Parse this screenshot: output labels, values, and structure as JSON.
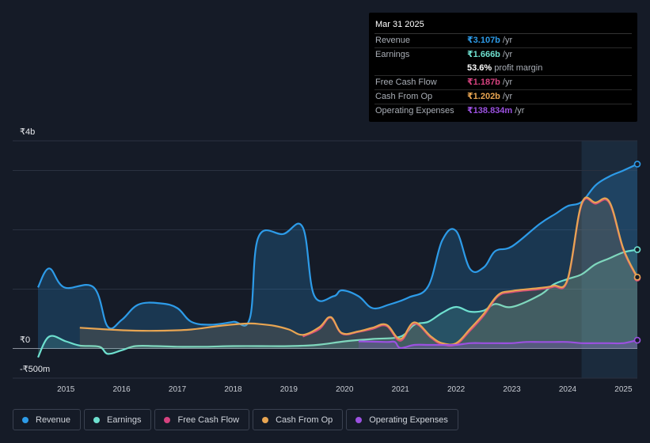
{
  "tooltip": {
    "date": "Mar 31 2025",
    "rows": [
      {
        "label": "Revenue",
        "value": "₹3.107b",
        "unit": "/yr",
        "color": "#2d9be8"
      },
      {
        "label": "Earnings",
        "value": "₹1.666b",
        "unit": "/yr",
        "color": "#6ee0cf"
      },
      {
        "label": "",
        "value": "53.6%",
        "unit": "profit margin",
        "color": "#ffffff"
      },
      {
        "label": "Free Cash Flow",
        "value": "₹1.187b",
        "unit": "/yr",
        "color": "#d6427f"
      },
      {
        "label": "Cash From Op",
        "value": "₹1.202b",
        "unit": "/yr",
        "color": "#e8a552"
      },
      {
        "label": "Operating Expenses",
        "value": "₹138.834m",
        "unit": "/yr",
        "color": "#9b51e0"
      }
    ]
  },
  "chart_data": {
    "type": "area",
    "title": "",
    "xlabel": "",
    "ylabel": "",
    "y_tick_labels": [
      "₹4b",
      "₹0",
      "-₹500m"
    ],
    "ylim": [
      -500,
      3500
    ],
    "xlim": [
      2014.5,
      2025.25
    ],
    "x_tick_labels": [
      "2015",
      "2016",
      "2017",
      "2018",
      "2019",
      "2020",
      "2021",
      "2022",
      "2023",
      "2024",
      "2025"
    ],
    "x_ticks": [
      2015,
      2016,
      2017,
      2018,
      2019,
      2020,
      2021,
      2022,
      2023,
      2024,
      2025
    ],
    "past_data_start": 2024.25,
    "series": [
      {
        "name": "Revenue",
        "color": "#2d9be8",
        "fill": true,
        "points": [
          [
            2014.5,
            1030
          ],
          [
            2014.7,
            1350
          ],
          [
            2014.97,
            1030
          ],
          [
            2015.5,
            1030
          ],
          [
            2015.75,
            370
          ],
          [
            2016.0,
            480
          ],
          [
            2016.3,
            740
          ],
          [
            2016.7,
            760
          ],
          [
            2017.0,
            680
          ],
          [
            2017.25,
            450
          ],
          [
            2017.6,
            400
          ],
          [
            2018.0,
            450
          ],
          [
            2018.3,
            510
          ],
          [
            2018.45,
            1870
          ],
          [
            2018.9,
            1930
          ],
          [
            2019.25,
            2040
          ],
          [
            2019.45,
            900
          ],
          [
            2019.8,
            880
          ],
          [
            2019.95,
            980
          ],
          [
            2020.25,
            880
          ],
          [
            2020.5,
            680
          ],
          [
            2020.8,
            740
          ],
          [
            2021.15,
            860
          ],
          [
            2021.5,
            1050
          ],
          [
            2021.75,
            1820
          ],
          [
            2022.0,
            1980
          ],
          [
            2022.25,
            1340
          ],
          [
            2022.5,
            1370
          ],
          [
            2022.7,
            1640
          ],
          [
            2023.0,
            1720
          ],
          [
            2023.5,
            2100
          ],
          [
            2023.8,
            2280
          ],
          [
            2024.0,
            2400
          ],
          [
            2024.25,
            2470
          ],
          [
            2024.5,
            2750
          ],
          [
            2024.75,
            2900
          ],
          [
            2025.0,
            3000
          ],
          [
            2025.25,
            3107
          ]
        ]
      },
      {
        "name": "Earnings",
        "color": "#6ee0cf",
        "fill": true,
        "points": [
          [
            2014.5,
            -150
          ],
          [
            2014.7,
            200
          ],
          [
            2015.0,
            120
          ],
          [
            2015.25,
            50
          ],
          [
            2015.6,
            30
          ],
          [
            2015.75,
            -90
          ],
          [
            2016.0,
            -30
          ],
          [
            2016.25,
            40
          ],
          [
            2016.6,
            40
          ],
          [
            2017.0,
            30
          ],
          [
            2017.5,
            30
          ],
          [
            2018.0,
            40
          ],
          [
            2018.5,
            40
          ],
          [
            2019.0,
            40
          ],
          [
            2019.5,
            60
          ],
          [
            2020.0,
            120
          ],
          [
            2020.5,
            160
          ],
          [
            2021.0,
            200
          ],
          [
            2021.25,
            400
          ],
          [
            2021.5,
            450
          ],
          [
            2021.75,
            600
          ],
          [
            2022.0,
            700
          ],
          [
            2022.25,
            620
          ],
          [
            2022.5,
            640
          ],
          [
            2022.7,
            750
          ],
          [
            2023.0,
            700
          ],
          [
            2023.5,
            900
          ],
          [
            2023.75,
            1080
          ],
          [
            2024.0,
            1170
          ],
          [
            2024.25,
            1250
          ],
          [
            2024.5,
            1420
          ],
          [
            2024.75,
            1520
          ],
          [
            2025.0,
            1620
          ],
          [
            2025.25,
            1666
          ]
        ]
      },
      {
        "name": "Free Cash Flow",
        "color": "#d6427f",
        "fill": false,
        "points": [
          [
            2019.25,
            200
          ],
          [
            2019.55,
            330
          ],
          [
            2019.75,
            520
          ],
          [
            2019.95,
            250
          ],
          [
            2020.25,
            280
          ],
          [
            2020.5,
            330
          ],
          [
            2020.75,
            380
          ],
          [
            2021.0,
            130
          ],
          [
            2021.25,
            420
          ],
          [
            2021.55,
            180
          ],
          [
            2021.75,
            70
          ],
          [
            2022.0,
            70
          ],
          [
            2022.25,
            300
          ],
          [
            2022.5,
            560
          ],
          [
            2022.75,
            880
          ],
          [
            2023.0,
            950
          ],
          [
            2023.5,
            1000
          ],
          [
            2023.75,
            1040
          ],
          [
            2024.0,
            1150
          ],
          [
            2024.25,
            2420
          ],
          [
            2024.5,
            2440
          ],
          [
            2024.75,
            2450
          ],
          [
            2025.0,
            1660
          ],
          [
            2025.25,
            1187
          ]
        ]
      },
      {
        "name": "Cash From Op",
        "color": "#e8a552",
        "fill": true,
        "points": [
          [
            2015.25,
            350
          ],
          [
            2015.75,
            320
          ],
          [
            2016.25,
            300
          ],
          [
            2016.75,
            300
          ],
          [
            2017.25,
            320
          ],
          [
            2017.75,
            380
          ],
          [
            2018.25,
            420
          ],
          [
            2018.5,
            410
          ],
          [
            2018.75,
            380
          ],
          [
            2019.0,
            320
          ],
          [
            2019.25,
            230
          ],
          [
            2019.55,
            360
          ],
          [
            2019.75,
            530
          ],
          [
            2019.95,
            260
          ],
          [
            2020.25,
            290
          ],
          [
            2020.5,
            350
          ],
          [
            2020.75,
            400
          ],
          [
            2021.0,
            160
          ],
          [
            2021.25,
            440
          ],
          [
            2021.55,
            200
          ],
          [
            2021.75,
            90
          ],
          [
            2022.0,
            90
          ],
          [
            2022.25,
            330
          ],
          [
            2022.5,
            590
          ],
          [
            2022.75,
            900
          ],
          [
            2023.0,
            970
          ],
          [
            2023.5,
            1020
          ],
          [
            2023.75,
            1060
          ],
          [
            2024.0,
            1170
          ],
          [
            2024.25,
            2440
          ],
          [
            2024.5,
            2460
          ],
          [
            2024.75,
            2470
          ],
          [
            2025.0,
            1680
          ],
          [
            2025.25,
            1202
          ]
        ]
      },
      {
        "name": "Operating Expenses",
        "color": "#9b51e0",
        "fill": true,
        "points": [
          [
            2020.25,
            120
          ],
          [
            2020.75,
            110
          ],
          [
            2020.9,
            110
          ],
          [
            2021.0,
            10
          ],
          [
            2021.25,
            60
          ],
          [
            2021.5,
            60
          ],
          [
            2021.75,
            60
          ],
          [
            2022.0,
            60
          ],
          [
            2022.25,
            90
          ],
          [
            2022.5,
            90
          ],
          [
            2022.75,
            90
          ],
          [
            2023.0,
            90
          ],
          [
            2023.25,
            110
          ],
          [
            2023.5,
            110
          ],
          [
            2023.75,
            110
          ],
          [
            2024.0,
            110
          ],
          [
            2024.25,
            90
          ],
          [
            2024.5,
            90
          ],
          [
            2024.75,
            90
          ],
          [
            2025.0,
            90
          ],
          [
            2025.25,
            139
          ]
        ]
      }
    ]
  },
  "legend": [
    {
      "label": "Revenue",
      "color": "#2d9be8"
    },
    {
      "label": "Earnings",
      "color": "#6ee0cf"
    },
    {
      "label": "Free Cash Flow",
      "color": "#d6427f"
    },
    {
      "label": "Cash From Op",
      "color": "#e8a552"
    },
    {
      "label": "Operating Expenses",
      "color": "#9b51e0"
    }
  ]
}
